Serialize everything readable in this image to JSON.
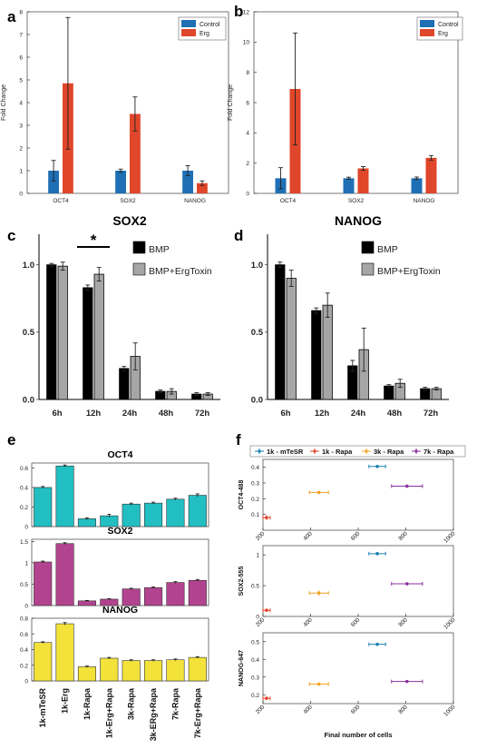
{
  "panel_letters": [
    "a",
    "b",
    "c",
    "d",
    "e",
    "f"
  ],
  "colors": {
    "control": "#1f6fb5",
    "erg": "#e0462a",
    "bmp": "#000000",
    "bmp_ergtoxin": "#a6a6a6",
    "oct4_bar": "#22bfc2",
    "sox2_bar": "#b2438f",
    "nanog_bar": "#f2e23a",
    "mtesr": "#1a7fb3",
    "k1_rapa": "#e0462a",
    "k3_rapa": "#f0a226",
    "k7_rapa": "#8b2f9e"
  },
  "chart_data": [
    {
      "id": "a",
      "type": "bar",
      "title": "",
      "xlabel": "",
      "ylabel": "Fold Change",
      "ylim": [
        0,
        8
      ],
      "yticks": [
        0,
        1,
        2,
        3,
        4,
        5,
        6,
        7,
        8
      ],
      "grid": false,
      "legend": "top-right",
      "categories": [
        "OCT4",
        "SOX2",
        "NANOG"
      ],
      "series": [
        {
          "name": "Control",
          "values": [
            1.0,
            1.0,
            1.0
          ],
          "errors": [
            0.45,
            0.07,
            0.22
          ]
        },
        {
          "name": "Erg",
          "values": [
            4.85,
            3.5,
            0.45
          ],
          "errors": [
            2.9,
            0.75,
            0.1
          ]
        }
      ]
    },
    {
      "id": "b",
      "type": "bar",
      "title": "",
      "xlabel": "",
      "ylabel": "Fold Change",
      "ylim": [
        0,
        12
      ],
      "yticks": [
        0,
        2,
        4,
        6,
        8,
        10,
        12
      ],
      "grid": false,
      "legend": "top-right",
      "categories": [
        "OCT4",
        "SOX2",
        "NANOG"
      ],
      "series": [
        {
          "name": "Control",
          "values": [
            1.0,
            1.0,
            1.0
          ],
          "errors": [
            0.7,
            0.07,
            0.08
          ]
        },
        {
          "name": "Erg",
          "values": [
            6.9,
            1.65,
            2.35
          ],
          "errors": [
            3.7,
            0.12,
            0.15
          ]
        }
      ]
    },
    {
      "id": "c",
      "type": "bar",
      "title": "SOX2",
      "xlabel": "",
      "ylabel": "",
      "ylim": [
        0,
        1.2
      ],
      "yticks": [
        0,
        0.5,
        1.0
      ],
      "ytick_labels": [
        "0.0",
        "0.5",
        "1.0"
      ],
      "grid": false,
      "legend": "top-right",
      "significance": {
        "category": "12h",
        "label": "*"
      },
      "categories": [
        "6h",
        "12h",
        "24h",
        "48h",
        "72h"
      ],
      "series": [
        {
          "name": "BMP",
          "values": [
            1.0,
            0.83,
            0.23,
            0.06,
            0.04
          ],
          "errors": [
            0.01,
            0.02,
            0.015,
            0.01,
            0.01
          ]
        },
        {
          "name": "BMP+ErgToxin",
          "values": [
            0.99,
            0.93,
            0.32,
            0.06,
            0.04
          ],
          "errors": [
            0.03,
            0.05,
            0.1,
            0.02,
            0.01
          ]
        }
      ]
    },
    {
      "id": "d",
      "type": "bar",
      "title": "NANOG",
      "xlabel": "",
      "ylabel": "",
      "ylim": [
        0,
        1.2
      ],
      "yticks": [
        0,
        0.5,
        1.0
      ],
      "ytick_labels": [
        "0.0",
        "0.5",
        "1.0"
      ],
      "grid": false,
      "legend": "top-right",
      "categories": [
        "6h",
        "12h",
        "24h",
        "48h",
        "72h"
      ],
      "series": [
        {
          "name": "BMP",
          "values": [
            1.0,
            0.66,
            0.25,
            0.1,
            0.08
          ],
          "errors": [
            0.02,
            0.02,
            0.04,
            0.01,
            0.01
          ]
        },
        {
          "name": "BMP+ErgToxin",
          "values": [
            0.9,
            0.7,
            0.37,
            0.12,
            0.08
          ],
          "errors": [
            0.06,
            0.09,
            0.16,
            0.03,
            0.01
          ]
        }
      ]
    },
    {
      "id": "e",
      "type": "bar",
      "categories": [
        "1k-mTeSR",
        "1k-Erg",
        "1k-Rapa",
        "1k-Erg+Rapa",
        "3k-Rapa",
        "3k-ERg+Rapa",
        "7k-Rapa",
        "7k-Erg+Rapa"
      ],
      "grid": false,
      "subplots": [
        {
          "title": "OCT4",
          "ylim": [
            0,
            0.65
          ],
          "yticks": [
            0,
            0.2,
            0.4,
            0.6
          ],
          "ytick_labels": [
            "0",
            "0.2",
            "0.4",
            "0.6"
          ],
          "values": [
            0.4,
            0.62,
            0.08,
            0.11,
            0.23,
            0.24,
            0.28,
            0.32
          ],
          "errors": [
            0.01,
            0.01,
            0.01,
            0.015,
            0.01,
            0.01,
            0.01,
            0.015
          ]
        },
        {
          "title": "SOX2",
          "ylim": [
            0,
            1.55
          ],
          "yticks": [
            0,
            0.5,
            1,
            1.5
          ],
          "ytick_labels": [
            "0",
            "0.5",
            "1",
            "1.5"
          ],
          "values": [
            1.02,
            1.45,
            0.11,
            0.15,
            0.39,
            0.42,
            0.54,
            0.59
          ],
          "errors": [
            0.02,
            0.02,
            0.01,
            0.01,
            0.015,
            0.015,
            0.02,
            0.02
          ]
        },
        {
          "title": "NANOG",
          "ylim": [
            0,
            0.8
          ],
          "yticks": [
            0,
            0.2,
            0.4,
            0.6,
            0.8
          ],
          "ytick_labels": [
            "0",
            "0.2",
            "0.4",
            "0.6",
            "0.8"
          ],
          "values": [
            0.49,
            0.73,
            0.18,
            0.29,
            0.26,
            0.26,
            0.27,
            0.3
          ],
          "errors": [
            0.01,
            0.015,
            0.01,
            0.01,
            0.01,
            0.01,
            0.01,
            0.01
          ]
        }
      ]
    },
    {
      "id": "f",
      "type": "scatter",
      "xlabel": "Final number of cells",
      "xlim": [
        200,
        1000
      ],
      "xticks": [
        200,
        400,
        600,
        800,
        1000
      ],
      "legend": "top",
      "series_names": [
        "1k - mTeSR",
        "1k - Rapa",
        "3k - Rapa",
        "7k - Rapa"
      ],
      "subplots": [
        {
          "ylabel": "OCT4-488",
          "ylim": [
            0,
            0.45
          ],
          "yticks": [
            0.1,
            0.2,
            0.3,
            0.4
          ],
          "ytick_labels": [
            "0.1",
            "0.2",
            "0.3",
            "0.4"
          ],
          "points": [
            {
              "series": "1k - mTeSR",
              "x": 680,
              "y": 0.405,
              "xerr": 35,
              "yerr": 0.003
            },
            {
              "series": "1k - Rapa",
              "x": 215,
              "y": 0.08,
              "xerr": 15,
              "yerr": 0.015
            },
            {
              "series": "3k - Rapa",
              "x": 435,
              "y": 0.24,
              "xerr": 40,
              "yerr": 0.01
            },
            {
              "series": "7k - Rapa",
              "x": 805,
              "y": 0.28,
              "xerr": 65,
              "yerr": 0.005
            }
          ]
        },
        {
          "ylabel": "SOX2-555",
          "ylim": [
            0,
            1.15
          ],
          "yticks": [
            0,
            0.5,
            1
          ],
          "ytick_labels": [
            "0",
            "0.5",
            "1"
          ],
          "points": [
            {
              "series": "1k - mTeSR",
              "x": 680,
              "y": 1.02,
              "xerr": 35,
              "yerr": 0.01
            },
            {
              "series": "1k - Rapa",
              "x": 215,
              "y": 0.1,
              "xerr": 15,
              "yerr": 0.01
            },
            {
              "series": "3k - Rapa",
              "x": 435,
              "y": 0.38,
              "xerr": 40,
              "yerr": 0.04
            },
            {
              "series": "7k - Rapa",
              "x": 805,
              "y": 0.53,
              "xerr": 65,
              "yerr": 0.01
            }
          ]
        },
        {
          "ylabel": "NANOG-647",
          "ylim": [
            0.15,
            0.55
          ],
          "yticks": [
            0.2,
            0.3,
            0.4,
            0.5
          ],
          "ytick_labels": [
            "0.2",
            "0.3",
            "0.4",
            "0.5"
          ],
          "points": [
            {
              "series": "1k - mTeSR",
              "x": 680,
              "y": 0.485,
              "xerr": 35,
              "yerr": 0.005
            },
            {
              "series": "1k - Rapa",
              "x": 215,
              "y": 0.18,
              "xerr": 15,
              "yerr": 0.01
            },
            {
              "series": "3k - Rapa",
              "x": 435,
              "y": 0.26,
              "xerr": 40,
              "yerr": 0.005
            },
            {
              "series": "7k - Rapa",
              "x": 805,
              "y": 0.275,
              "xerr": 65,
              "yerr": 0.005
            }
          ]
        }
      ]
    }
  ]
}
